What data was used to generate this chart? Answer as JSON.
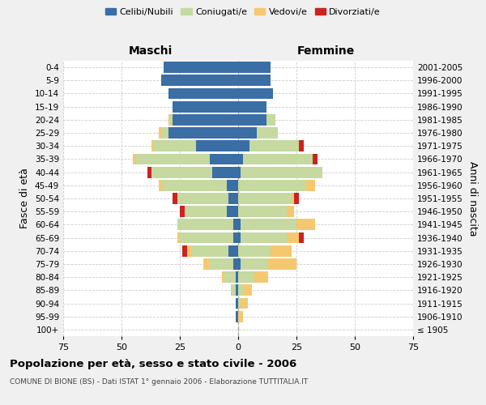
{
  "age_groups": [
    "100+",
    "95-99",
    "90-94",
    "85-89",
    "80-84",
    "75-79",
    "70-74",
    "65-69",
    "60-64",
    "55-59",
    "50-54",
    "45-49",
    "40-44",
    "35-39",
    "30-34",
    "25-29",
    "20-24",
    "15-19",
    "10-14",
    "5-9",
    "0-4"
  ],
  "birth_years": [
    "≤ 1905",
    "1906-1910",
    "1911-1915",
    "1916-1920",
    "1921-1925",
    "1926-1930",
    "1931-1935",
    "1936-1940",
    "1941-1945",
    "1946-1950",
    "1951-1955",
    "1956-1960",
    "1961-1965",
    "1966-1970",
    "1971-1975",
    "1976-1980",
    "1981-1985",
    "1986-1990",
    "1991-1995",
    "1996-2000",
    "2001-2005"
  ],
  "colors": {
    "celibi": "#3a6ea5",
    "coniugati": "#c5d9a0",
    "vedovi": "#f5c870",
    "divorziati": "#cc2222"
  },
  "maschi": {
    "celibi": [
      0,
      1,
      1,
      1,
      1,
      2,
      4,
      2,
      2,
      5,
      4,
      5,
      11,
      12,
      18,
      30,
      28,
      28,
      30,
      33,
      32
    ],
    "coniugati": [
      0,
      0,
      0,
      2,
      5,
      10,
      16,
      23,
      24,
      18,
      22,
      28,
      26,
      32,
      18,
      3,
      1,
      0,
      0,
      0,
      0
    ],
    "vedovi": [
      0,
      0,
      0,
      0,
      1,
      3,
      2,
      1,
      0,
      0,
      0,
      1,
      0,
      1,
      1,
      1,
      1,
      0,
      0,
      0,
      0
    ],
    "divorziati": [
      0,
      0,
      0,
      0,
      0,
      0,
      2,
      0,
      0,
      2,
      2,
      0,
      2,
      0,
      0,
      0,
      0,
      0,
      0,
      0,
      0
    ]
  },
  "femmine": {
    "nubili": [
      0,
      0,
      0,
      0,
      0,
      1,
      0,
      1,
      1,
      0,
      0,
      0,
      1,
      2,
      5,
      8,
      12,
      12,
      15,
      14,
      14
    ],
    "coniugate": [
      0,
      0,
      1,
      2,
      7,
      12,
      14,
      20,
      24,
      21,
      23,
      29,
      35,
      30,
      21,
      9,
      4,
      0,
      0,
      0,
      0
    ],
    "vedove": [
      0,
      2,
      3,
      4,
      6,
      12,
      9,
      5,
      8,
      3,
      1,
      4,
      0,
      0,
      0,
      0,
      0,
      0,
      0,
      0,
      0
    ],
    "divorziate": [
      0,
      0,
      0,
      0,
      0,
      0,
      0,
      2,
      0,
      0,
      2,
      0,
      0,
      2,
      2,
      0,
      0,
      0,
      0,
      0,
      0
    ]
  },
  "xlim": 75,
  "xlabel_left": "Maschi",
  "xlabel_right": "Femmine",
  "ylabel_left": "Fasce di età",
  "ylabel_right": "Anni di nascita",
  "title": "Popolazione per età, sesso e stato civile - 2006",
  "subtitle": "COMUNE DI BIONE (BS) - Dati ISTAT 1° gennaio 2006 - Elaborazione TUTTITALIA.IT",
  "legend_labels": [
    "Celibi/Nubili",
    "Coniugati/e",
    "Vedovi/e",
    "Divorziati/e"
  ],
  "bg_color": "#f0f0f0",
  "plot_bg": "#ffffff",
  "grid_color": "#cccccc"
}
